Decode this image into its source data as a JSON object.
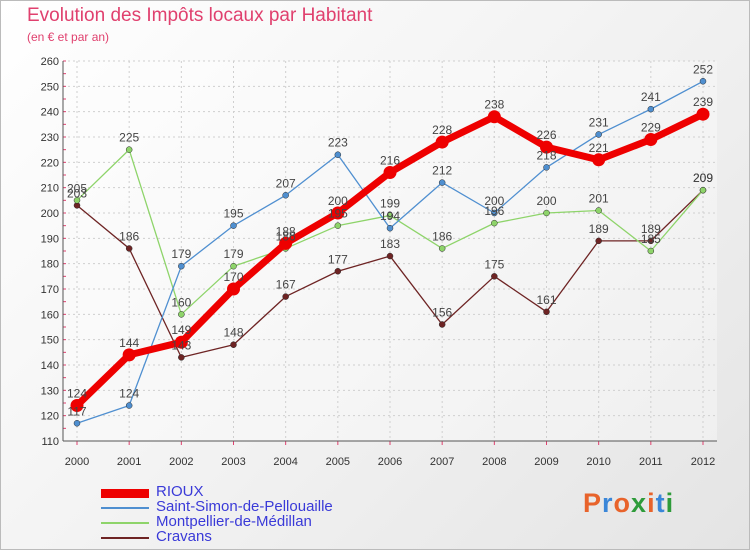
{
  "title": "Evolution des Impôts locaux par Habitant",
  "subtitle": "(en € et par an)",
  "logo": "Proxiti",
  "logo_colors": [
    "#e8632b",
    "#3a86d8",
    "#e8632b",
    "#2e9b3a",
    "#e8632b",
    "#3a86d8",
    "#2e9b3a"
  ],
  "chart_data": {
    "type": "line",
    "title": "Evolution des Impôts locaux par Habitant",
    "subtitle": "(en € et par an)",
    "xlabel": "",
    "ylabel": "",
    "x": [
      "2000",
      "2001",
      "2002",
      "2003",
      "2004",
      "2005",
      "2006",
      "2007",
      "2008",
      "2009",
      "2010",
      "2011",
      "2012"
    ],
    "ylim": [
      110,
      260
    ],
    "yticks": [
      110,
      120,
      130,
      140,
      150,
      160,
      170,
      180,
      190,
      200,
      210,
      220,
      230,
      240,
      250,
      260
    ],
    "grid": true,
    "legend_position": "bottom-left",
    "series": [
      {
        "name": "RIOUX",
        "color": "#ee0000",
        "values": [
          124,
          144,
          149,
          170,
          188,
          200,
          216,
          228,
          238,
          226,
          221,
          229,
          239
        ]
      },
      {
        "name": "Saint-Simon-de-Pellouaille",
        "color": "#4f8fd0",
        "values": [
          117,
          124,
          179,
          195,
          207,
          223,
          194,
          212,
          200,
          218,
          231,
          241,
          252
        ]
      },
      {
        "name": "Montpellier-de-Médillan",
        "color": "#8ed46a",
        "values": [
          205,
          225,
          160,
          179,
          186,
          195,
          199,
          186,
          196,
          200,
          201,
          185,
          209
        ]
      },
      {
        "name": "Cravans",
        "color": "#6e2424",
        "values": [
          203,
          186,
          143,
          148,
          167,
          177,
          183,
          156,
          175,
          161,
          189,
          189,
          209
        ]
      }
    ]
  }
}
